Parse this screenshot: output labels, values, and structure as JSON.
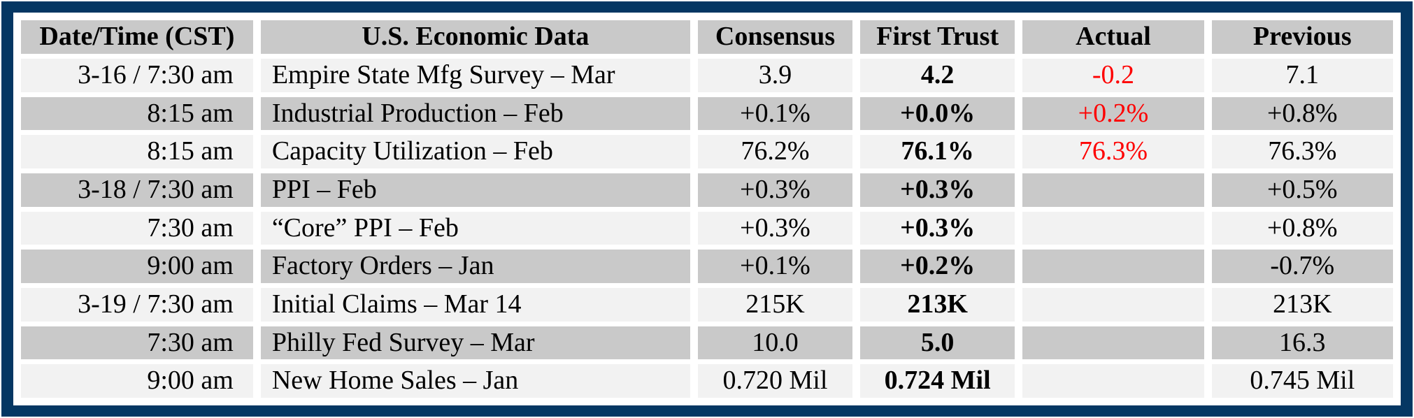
{
  "colors": {
    "frame_navy": "#053763",
    "header_gray": "#c9c9c9",
    "row_light": "#f2f2f2",
    "row_gray": "#c9c9c9",
    "actual_red": "#fe0000",
    "text_black": "#000000"
  },
  "table": {
    "columns": [
      "Date/Time (CST)",
      "U.S. Economic Data",
      "Consensus",
      "First Trust",
      "Actual",
      "Previous"
    ],
    "rows": [
      {
        "datetime": "3-16 / 7:30 am",
        "event": "Empire State Mfg Survey – Mar",
        "consensus": "3.9",
        "first_trust": "4.2",
        "actual": "-0.2",
        "previous": "7.1"
      },
      {
        "datetime": "8:15 am",
        "event": "Industrial Production – Feb",
        "consensus": "+0.1%",
        "first_trust": "+0.0%",
        "actual": "+0.2%",
        "previous": "+0.8%"
      },
      {
        "datetime": "8:15 am",
        "event": "Capacity Utilization – Feb",
        "consensus": "76.2%",
        "first_trust": "76.1%",
        "actual": "76.3%",
        "previous": "76.3%"
      },
      {
        "datetime": "3-18 / 7:30 am",
        "event": "PPI – Feb",
        "consensus": "+0.3%",
        "first_trust": "+0.3%",
        "actual": "",
        "previous": "+0.5%"
      },
      {
        "datetime": "7:30 am",
        "event": "“Core” PPI – Feb",
        "consensus": "+0.3%",
        "first_trust": "+0.3%",
        "actual": "",
        "previous": "+0.8%"
      },
      {
        "datetime": "9:00 am",
        "event": "Factory Orders – Jan",
        "consensus": "+0.1%",
        "first_trust": "+0.2%",
        "actual": "",
        "previous": "-0.7%"
      },
      {
        "datetime": "3-19 / 7:30 am",
        "event": "Initial Claims – Mar 14",
        "consensus": "215K",
        "first_trust": "213K",
        "actual": "",
        "previous": "213K"
      },
      {
        "datetime": "7:30 am",
        "event": "Philly Fed Survey – Mar",
        "consensus": "10.0",
        "first_trust": "5.0",
        "actual": "",
        "previous": "16.3"
      },
      {
        "datetime": "9:00 am",
        "event": "New Home Sales – Jan",
        "consensus": "0.720 Mil",
        "first_trust": "0.724 Mil",
        "actual": "",
        "previous": "0.745 Mil"
      }
    ]
  },
  "chart_data": {
    "type": "table",
    "title": "U.S. Economic Data calendar",
    "columns": [
      "Date/Time (CST)",
      "U.S. Economic Data",
      "Consensus",
      "First Trust",
      "Actual",
      "Previous"
    ],
    "rows": [
      [
        "3-16 / 7:30 am",
        "Empire State Mfg Survey – Mar",
        "3.9",
        "4.2",
        "-0.2",
        "7.1"
      ],
      [
        "8:15 am",
        "Industrial Production – Feb",
        "+0.1%",
        "+0.0%",
        "+0.2%",
        "+0.8%"
      ],
      [
        "8:15 am",
        "Capacity Utilization – Feb",
        "76.2%",
        "76.1%",
        "76.3%",
        "76.3%"
      ],
      [
        "3-18 / 7:30 am",
        "PPI – Feb",
        "+0.3%",
        "+0.3%",
        "",
        "+0.5%"
      ],
      [
        "7:30 am",
        "“Core” PPI – Feb",
        "+0.3%",
        "+0.3%",
        "",
        "+0.8%"
      ],
      [
        "9:00 am",
        "Factory Orders – Jan",
        "+0.1%",
        "+0.2%",
        "",
        "-0.7%"
      ],
      [
        "3-19 / 7:30 am",
        "Initial Claims – Mar 14",
        "215K",
        "213K",
        "",
        "213K"
      ],
      [
        "7:30 am",
        "Philly Fed Survey – Mar",
        "10.0",
        "5.0",
        "",
        "16.3"
      ],
      [
        "9:00 am",
        "New Home Sales – Jan",
        "0.720 Mil",
        "0.724 Mil",
        "",
        "0.745 Mil"
      ]
    ],
    "layout_hints": {
      "first_trust_column_bold": true,
      "actual_column_color": "#fe0000",
      "alternating_row_shading": [
        "#f2f2f2",
        "#c9c9c9"
      ],
      "header_shading": "#c9c9c9",
      "outer_frame_color": "#053763"
    }
  }
}
